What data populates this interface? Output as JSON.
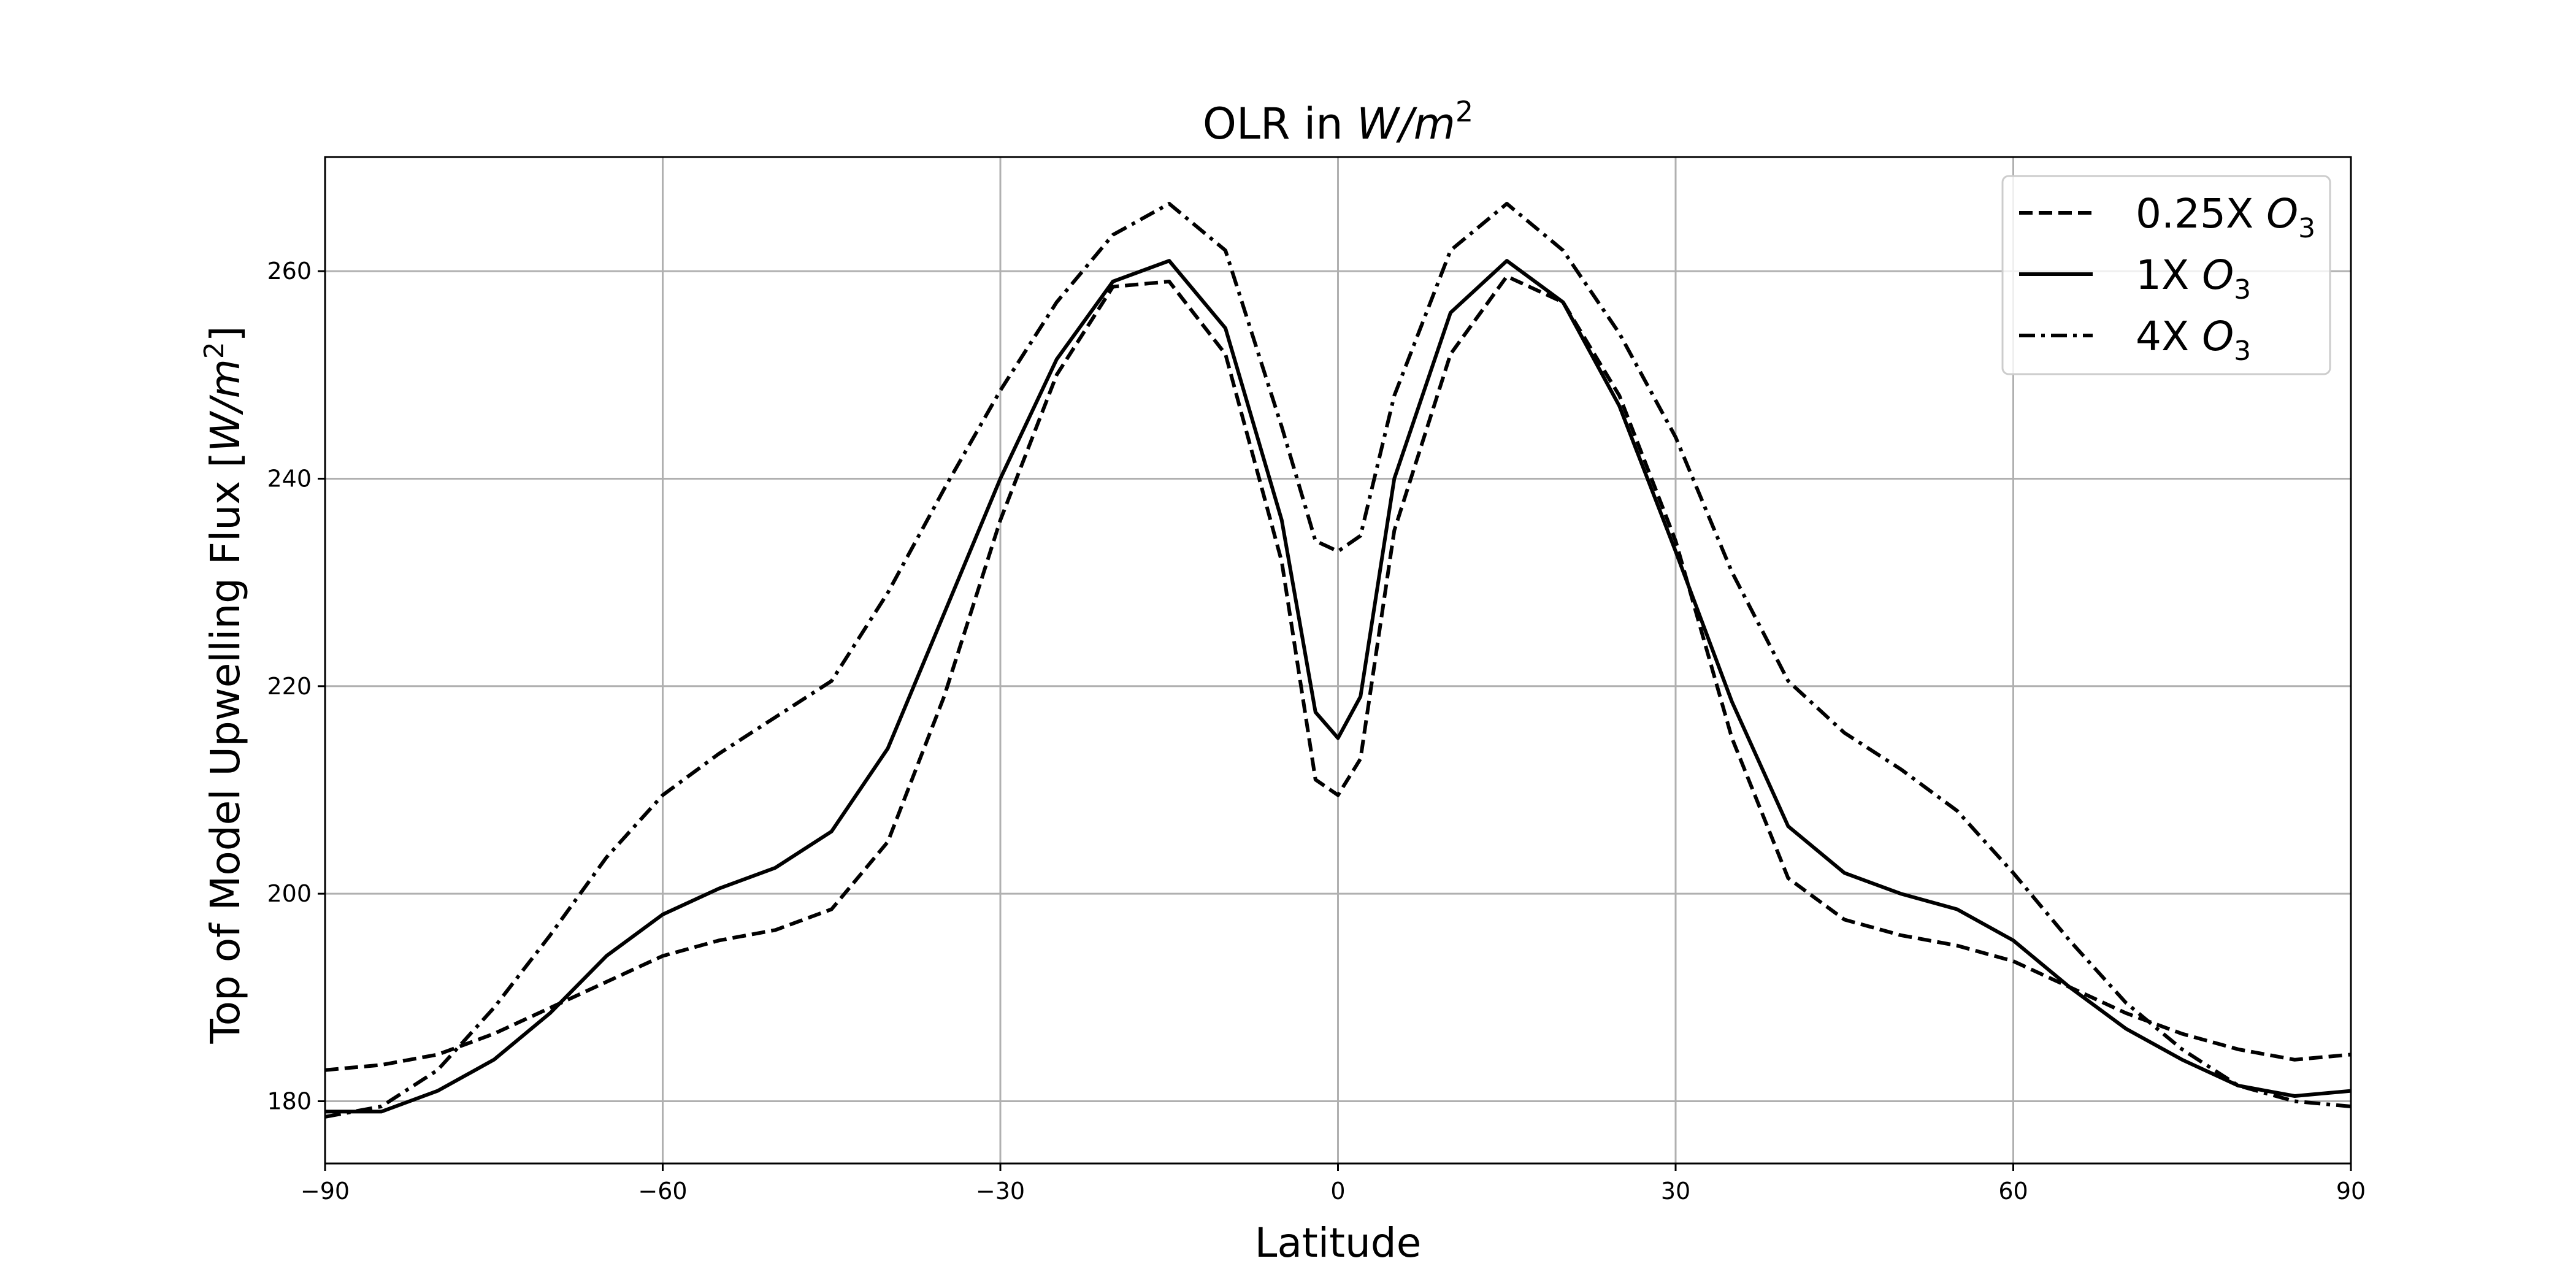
{
  "chart_data": {
    "type": "line",
    "title": "OLR in W/m²",
    "title_parts": {
      "prefix": "OLR in ",
      "unit_main": "W/m",
      "unit_sup": "2"
    },
    "xlabel": "Latitude",
    "ylabel": "Top of Model Upwelling Flux [W/m²]",
    "ylabel_parts": {
      "prefix": "Top of Model Upwelling Flux [",
      "unit_main": "W/m",
      "unit_sup": "2",
      "suffix": "]"
    },
    "xlim": [
      -90,
      90
    ],
    "ylim": [
      174,
      271
    ],
    "xticks": [
      -90,
      -60,
      -30,
      0,
      30,
      60,
      90
    ],
    "xtick_labels": [
      "−90",
      "−60",
      "−30",
      "0",
      "30",
      "60",
      "90"
    ],
    "yticks": [
      180,
      200,
      220,
      240,
      260
    ],
    "ytick_labels": [
      "180",
      "200",
      "220",
      "240",
      "260"
    ],
    "grid": true,
    "legend_position": "top-right",
    "x": [
      -90,
      -85,
      -80,
      -75,
      -70,
      -65,
      -60,
      -55,
      -50,
      -45,
      -40,
      -35,
      -30,
      -25,
      -20,
      -15,
      -10,
      -5,
      -2,
      0,
      2,
      5,
      10,
      15,
      20,
      25,
      30,
      35,
      40,
      45,
      50,
      55,
      60,
      65,
      70,
      75,
      80,
      85,
      90
    ],
    "series": [
      {
        "name": "0.25X O3",
        "name_parts": {
          "prefix": "0.25X ",
          "main": "O",
          "sub": "3"
        },
        "style": "dashed",
        "values": [
          183,
          183.5,
          184.5,
          186.5,
          189,
          191.5,
          194,
          195.5,
          196.5,
          198.5,
          205,
          219,
          236,
          250,
          258.5,
          259,
          252,
          232,
          211,
          209.5,
          213,
          235,
          252,
          259.5,
          257,
          248,
          234,
          215,
          201.5,
          197.5,
          196,
          195,
          193.5,
          191,
          188.5,
          186.5,
          185,
          184,
          184.5
        ]
      },
      {
        "name": "1X O3",
        "name_parts": {
          "prefix": "1X ",
          "main": "O",
          "sub": "3"
        },
        "style": "solid",
        "values": [
          179,
          179,
          181,
          184,
          188.5,
          194,
          198,
          200.5,
          202.5,
          206,
          214,
          227,
          240,
          251.5,
          259,
          261,
          254.5,
          236,
          217.5,
          215,
          219,
          240,
          256,
          261,
          257,
          247,
          233,
          218.5,
          206.5,
          202,
          200,
          198.5,
          195.5,
          191,
          187,
          184,
          181.5,
          180.5,
          181
        ]
      },
      {
        "name": "4X O3",
        "name_parts": {
          "prefix": "4X ",
          "main": "O",
          "sub": "3"
        },
        "style": "dashdot",
        "values": [
          178.5,
          179.5,
          183,
          189,
          196,
          203.5,
          209.5,
          213.5,
          217,
          220.5,
          229,
          239,
          248.5,
          257,
          263.5,
          266.5,
          262,
          245,
          234,
          233,
          234.5,
          248,
          262,
          266.5,
          262,
          254,
          244,
          231,
          220.5,
          215.5,
          212,
          208,
          202,
          195.5,
          189.5,
          185,
          181.5,
          180,
          179.5
        ]
      }
    ]
  }
}
